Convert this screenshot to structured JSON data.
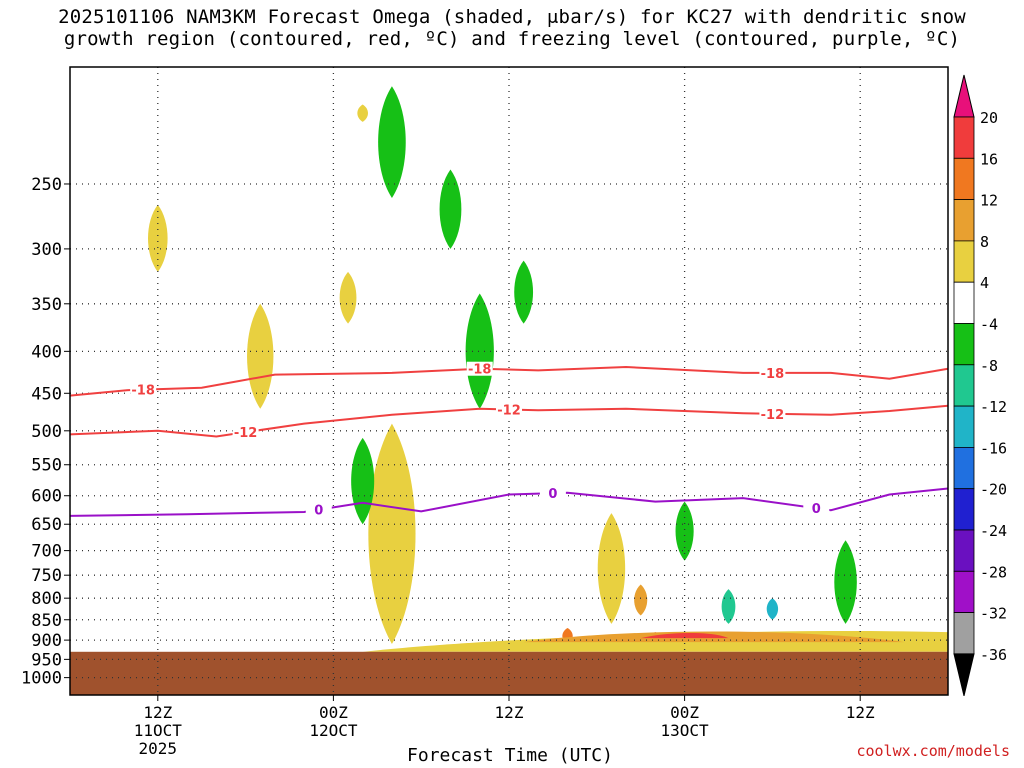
{
  "chart_data": {
    "type": "heatmap",
    "title_line1": "2025101106 NAM3KM Forecast Omega (shaded, μbar/s) for KC27 with dendritic snow",
    "title_line2": "growth region (contoured, red, ºC) and freezing level (contoured, purple, ºC)",
    "xlabel": "Forecast Time (UTC)",
    "ylabel": "",
    "y_scale": "log",
    "ylim": [
      1050,
      180
    ],
    "yticks": [
      250,
      300,
      350,
      400,
      450,
      500,
      550,
      600,
      650,
      700,
      750,
      800,
      850,
      900,
      950,
      1000
    ],
    "xlim": [
      "2025-10-11T06Z",
      "2025-10-13T18Z"
    ],
    "xticks": [
      {
        "time": "2025-10-11T12Z",
        "label": "12Z",
        "sub": [
          "11OCT",
          "2025"
        ]
      },
      {
        "time": "2025-10-12T00Z",
        "label": "00Z",
        "sub": [
          "12OCT"
        ]
      },
      {
        "time": "2025-10-12T12Z",
        "label": "12Z",
        "sub": []
      },
      {
        "time": "2025-10-13T00Z",
        "label": "00Z",
        "sub": [
          "13OCT"
        ]
      },
      {
        "time": "2025-10-13T12Z",
        "label": "12Z",
        "sub": []
      }
    ],
    "grid": true,
    "ground_level_hpa": 930,
    "colorbar": {
      "levels": [
        20,
        16,
        12,
        8,
        4,
        -4,
        -8,
        -12,
        -16,
        -20,
        -24,
        -28,
        -32,
        -36
      ],
      "colors": [
        "#e8107a",
        "#f03c3c",
        "#f07820",
        "#e8a030",
        "#e8d040",
        "#ffffff",
        "#16c016",
        "#20c890",
        "#20b4c8",
        "#2070e0",
        "#2020d0",
        "#6a10c0",
        "#a010c8",
        "#a0a0a0",
        "#000000"
      ]
    },
    "series": [
      {
        "name": "-18",
        "color": "#f04040",
        "points": [
          [
            "2025-10-11T06Z",
            453
          ],
          [
            "2025-10-11T10Z",
            446
          ],
          [
            "2025-10-11T15Z",
            443
          ],
          [
            "2025-10-11T20Z",
            427
          ],
          [
            "2025-10-12T04Z",
            425
          ],
          [
            "2025-10-12T10Z",
            420
          ],
          [
            "2025-10-12T14Z",
            422
          ],
          [
            "2025-10-12T20Z",
            418
          ],
          [
            "2025-10-13T04Z",
            425
          ],
          [
            "2025-10-13T10Z",
            425
          ],
          [
            "2025-10-13T14Z",
            432
          ],
          [
            "2025-10-13T18Z",
            420
          ]
        ],
        "labels": [
          "2025-10-11T11Z",
          "2025-10-12T10Z",
          "2025-10-13T06Z"
        ]
      },
      {
        "name": "-12",
        "color": "#f04040",
        "points": [
          [
            "2025-10-11T06Z",
            505
          ],
          [
            "2025-10-11T12Z",
            500
          ],
          [
            "2025-10-11T16Z",
            508
          ],
          [
            "2025-10-11T22Z",
            490
          ],
          [
            "2025-10-12T04Z",
            478
          ],
          [
            "2025-10-12T10Z",
            470
          ],
          [
            "2025-10-12T14Z",
            472
          ],
          [
            "2025-10-12T20Z",
            470
          ],
          [
            "2025-10-13T04Z",
            476
          ],
          [
            "2025-10-13T10Z",
            478
          ],
          [
            "2025-10-13T14Z",
            473
          ],
          [
            "2025-10-13T18Z",
            466
          ]
        ],
        "labels": [
          "2025-10-11T18Z",
          "2025-10-12T12Z",
          "2025-10-13T06Z"
        ]
      },
      {
        "name": "0",
        "color": "#9a10c8",
        "points": [
          [
            "2025-10-11T06Z",
            635
          ],
          [
            "2025-10-11T14Z",
            632
          ],
          [
            "2025-10-11T22Z",
            628
          ],
          [
            "2025-10-12T02Z",
            612
          ],
          [
            "2025-10-12T06Z",
            627
          ],
          [
            "2025-10-12T12Z",
            598
          ],
          [
            "2025-10-12T16Z",
            595
          ],
          [
            "2025-10-12T22Z",
            610
          ],
          [
            "2025-10-13T04Z",
            604
          ],
          [
            "2025-10-13T10Z",
            625
          ],
          [
            "2025-10-13T14Z",
            598
          ],
          [
            "2025-10-13T18Z",
            588
          ]
        ],
        "labels": [
          "2025-10-11T23Z",
          "2025-10-12T15Z",
          "2025-10-13T09Z"
        ]
      }
    ],
    "shaded_regions": [
      {
        "value": 6,
        "t": "2025-10-11T12Z",
        "p": [
          265,
          320
        ]
      },
      {
        "value": 6,
        "t": "2025-10-11T19Z",
        "p": [
          350,
          470
        ]
      },
      {
        "value": 6,
        "t": "2025-10-12T01Z",
        "p": [
          320,
          370
        ]
      },
      {
        "value": 6,
        "t": "2025-10-12T02Z",
        "p": [
          200,
          210
        ]
      },
      {
        "value": 6,
        "t": "2025-10-12T04Z",
        "p": [
          490,
          910
        ]
      },
      {
        "value": -6,
        "t": "2025-10-12T04Z",
        "p": [
          190,
          260
        ]
      },
      {
        "value": -6,
        "t": "2025-10-12T02Z",
        "p": [
          510,
          650
        ]
      },
      {
        "value": -6,
        "t": "2025-10-12T08Z",
        "p": [
          240,
          300
        ]
      },
      {
        "value": -6,
        "t": "2025-10-12T10Z",
        "p": [
          340,
          470
        ]
      },
      {
        "value": -6,
        "t": "2025-10-12T13Z",
        "p": [
          310,
          370
        ]
      },
      {
        "value": 6,
        "t": "2025-10-12T19Z",
        "p": [
          630,
          860
        ]
      },
      {
        "value": -10,
        "t": "2025-10-13T03Z",
        "p": [
          780,
          860
        ]
      },
      {
        "value": -14,
        "t": "2025-10-13T06Z",
        "p": [
          800,
          850
        ]
      },
      {
        "value": 10,
        "t": "2025-10-12T21Z",
        "p": [
          770,
          840
        ]
      },
      {
        "value": 18,
        "t": "2025-10-12T22Z",
        "p": [
          880,
          900
        ]
      },
      {
        "value": 12,
        "t": "2025-10-12T16Z",
        "p": [
          870,
          910
        ]
      },
      {
        "value": -8,
        "t": "2025-10-13T00Z",
        "p": [
          610,
          720
        ]
      },
      {
        "value": -6,
        "t": "2025-10-13T11Z",
        "p": [
          680,
          860
        ]
      }
    ]
  },
  "credit": "coolwx.com/models"
}
